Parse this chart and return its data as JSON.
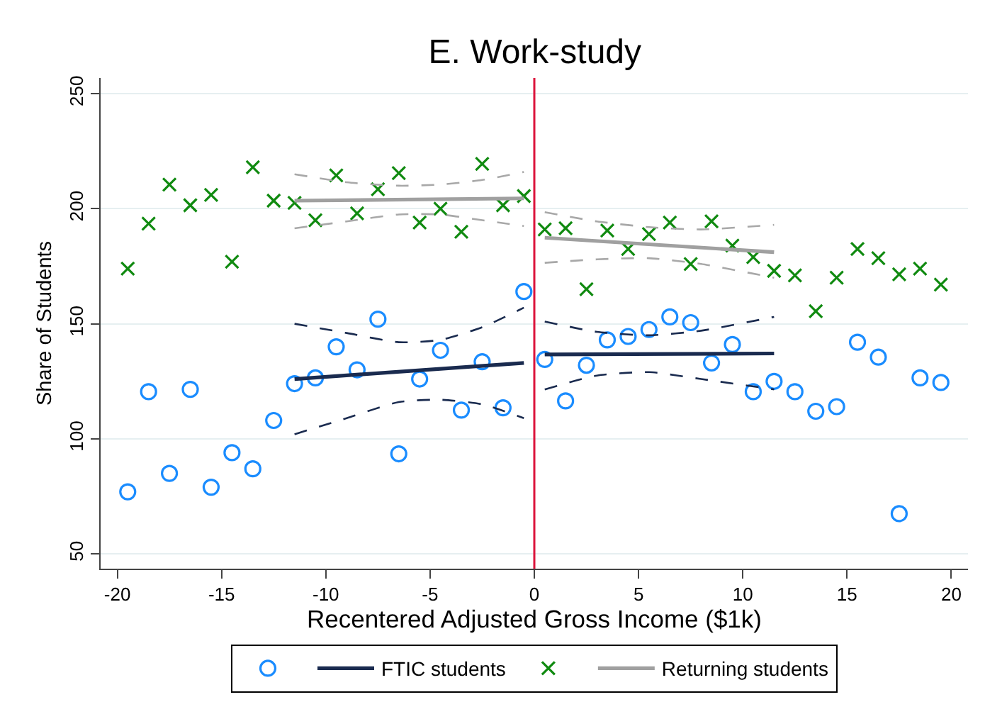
{
  "chart_data": {
    "type": "scatter",
    "title": "E. Work-study",
    "xlabel": "Recentered Adjusted Gross Income ($1k)",
    "ylabel": "Share of Students",
    "x": [
      -19.5,
      -18.5,
      -17.5,
      -16.5,
      -15.5,
      -14.5,
      -13.5,
      -12.5,
      -11.5,
      -10.5,
      -9.5,
      -8.5,
      -7.5,
      -6.5,
      -5.5,
      -4.5,
      -3.5,
      -2.5,
      -1.5,
      -0.5,
      0.5,
      1.5,
      2.5,
      3.5,
      4.5,
      5.5,
      6.5,
      7.5,
      8.5,
      9.5,
      10.5,
      11.5,
      12.5,
      13.5,
      14.5,
      15.5,
      16.5,
      17.5,
      18.5,
      19.5
    ],
    "series": [
      {
        "marker": "circle",
        "color": "#1a8cff",
        "values": [
          77,
          120.5,
          85,
          121.5,
          79,
          94,
          87,
          108,
          124,
          126.5,
          140,
          130,
          152,
          93.5,
          126,
          138.5,
          112.5,
          133.5,
          113.5,
          164,
          134.5,
          116.5,
          132,
          143,
          144.5,
          147.5,
          153,
          150.5,
          133,
          141,
          120.5,
          125,
          120.5,
          112,
          114,
          142,
          135.5,
          67.5,
          126.5,
          124.5
        ]
      },
      {
        "type": "line",
        "name": "FTIC students",
        "color": "#1a2b4f",
        "x": [
          -11.5,
          -0.5,
          0,
          0.5,
          11.5
        ],
        "values": [
          126,
          133,
          null,
          136.7,
          137.1
        ]
      },
      {
        "marker": "cross",
        "color": "#108a10",
        "values": [
          174,
          193.5,
          210.5,
          201.5,
          206,
          177,
          218,
          203.5,
          202.5,
          195,
          214.5,
          198,
          208.5,
          215.5,
          194,
          200,
          190,
          219.5,
          201.5,
          205.5,
          191,
          191.5,
          165,
          190.5,
          182.5,
          189,
          194,
          176,
          194.5,
          184,
          179,
          173,
          171,
          155.5,
          170,
          182.5,
          178.5,
          171.5,
          174,
          167
        ]
      },
      {
        "type": "line",
        "name": "Returning students",
        "color": "#a0a0a0",
        "x": [
          -11.5,
          -0.5,
          0,
          0.5,
          11.5
        ],
        "values": [
          203.5,
          204.5,
          null,
          187.4,
          181.1
        ]
      },
      {
        "type": "line",
        "line_style": "dashed",
        "color": "#1a2b4f",
        "x": [
          -11.5,
          -9,
          -6.5,
          -4.5,
          -2.5,
          -0.5,
          0,
          0.5,
          3,
          5.5,
          8,
          11.5
        ],
        "values": [
          150,
          146,
          142,
          143,
          148.5,
          157,
          null,
          151,
          146.5,
          145,
          147,
          153
        ]
      },
      {
        "type": "line",
        "line_style": "dashed",
        "color": "#1a2b4f",
        "x": [
          -11.5,
          -9,
          -6.5,
          -4.5,
          -2.5,
          -0.5,
          0,
          0.5,
          3,
          5.5,
          8,
          11.5
        ],
        "values": [
          102,
          109,
          116,
          117,
          115,
          109,
          null,
          121.5,
          127.5,
          129,
          126,
          121.5
        ]
      },
      {
        "type": "line",
        "line_style": "dashed",
        "color": "#a8a8a8",
        "x": [
          -11.5,
          -9,
          -6.5,
          -4.5,
          -2.5,
          -0.5,
          0,
          0.5,
          3,
          5.5,
          8,
          11.5
        ],
        "values": [
          215,
          211.5,
          210,
          210.5,
          212.5,
          216,
          null,
          198.5,
          194.5,
          192,
          191,
          193
        ]
      },
      {
        "type": "line",
        "line_style": "dashed",
        "color": "#a8a8a8",
        "x": [
          -11.5,
          -9,
          -6.5,
          -4.5,
          -2.5,
          -0.5,
          0,
          0.5,
          3,
          5.5,
          8,
          11.5
        ],
        "values": [
          191.5,
          194.5,
          197.5,
          197.5,
          195,
          192.5,
          null,
          176.5,
          178,
          178.5,
          176,
          170
        ]
      }
    ],
    "xlim": [
      -20.8,
      20.8
    ],
    "ylim": [
      43.6,
      256.8
    ],
    "xticks": [
      -20,
      -15,
      -10,
      -5,
      0,
      5,
      10,
      15,
      20
    ],
    "yticks": [
      50,
      100,
      150,
      200,
      250
    ],
    "grid": "y",
    "legend": "bottom",
    "ref_lines": [
      {
        "axis": "x",
        "value": 0,
        "color": "#dc143c"
      }
    ]
  }
}
